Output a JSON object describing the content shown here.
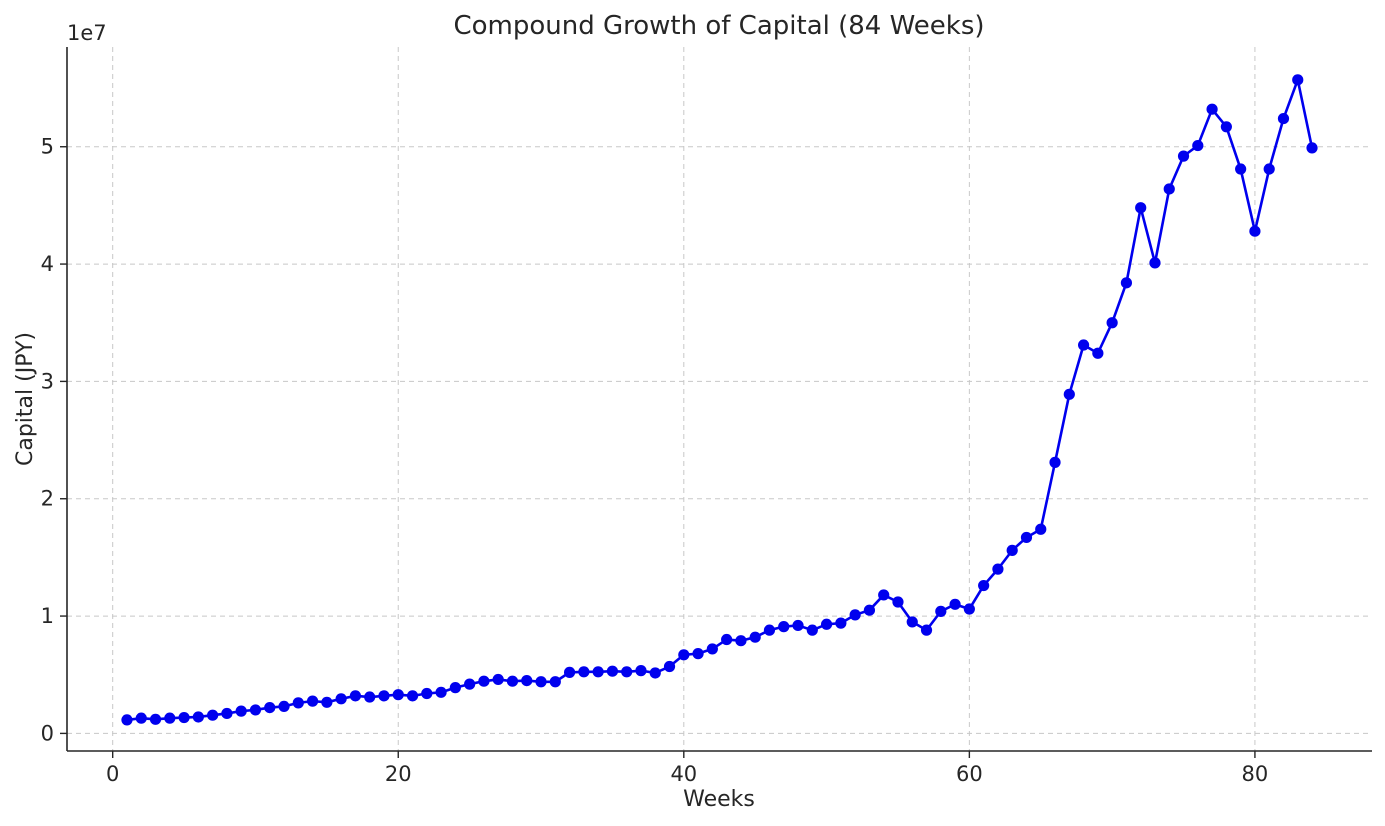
{
  "chart_data": {
    "type": "line",
    "title": "Compound Growth of Capital (84 Weeks)",
    "xlabel": "Weeks",
    "ylabel": "Capital (JPY)",
    "y_offset_label": "1e7",
    "xlim": [
      -3.2,
      88.2
    ],
    "ylim": [
      -1500000,
      58500000
    ],
    "x_ticks": [
      0,
      20,
      40,
      60,
      80
    ],
    "x_tick_labels": [
      "0",
      "20",
      "40",
      "60",
      "80"
    ],
    "y_ticks": [
      0,
      10000000,
      20000000,
      30000000,
      40000000,
      50000000
    ],
    "y_tick_labels": [
      "0",
      "1",
      "2",
      "3",
      "4",
      "5"
    ],
    "grid": true,
    "color": "#0000ee",
    "series": [
      {
        "x": [
          1,
          2,
          3,
          4,
          5,
          6,
          7,
          8,
          9,
          10,
          11,
          12,
          13,
          14,
          15,
          16,
          17,
          18,
          19,
          20,
          21,
          22,
          23,
          24,
          25,
          26,
          27,
          28,
          29,
          30,
          31,
          32,
          33,
          34,
          35,
          36,
          37,
          38,
          39,
          40,
          41,
          42,
          43,
          44,
          45,
          46,
          47,
          48,
          49,
          50,
          51,
          52,
          53,
          54,
          55,
          56,
          57,
          58,
          59,
          60,
          61,
          62,
          63,
          64,
          65,
          66,
          67,
          68,
          69,
          70,
          71,
          72,
          73,
          74,
          75,
          76,
          77,
          78,
          79,
          80,
          81,
          82,
          83,
          84
        ],
        "values": [
          1150000,
          1300000,
          1200000,
          1300000,
          1350000,
          1400000,
          1550000,
          1700000,
          1900000,
          2000000,
          2200000,
          2300000,
          2600000,
          2750000,
          2650000,
          2950000,
          3200000,
          3100000,
          3200000,
          3300000,
          3200000,
          3400000,
          3500000,
          3900000,
          4200000,
          4450000,
          4600000,
          4450000,
          4500000,
          4400000,
          4400000,
          5200000,
          5250000,
          5250000,
          5300000,
          5250000,
          5350000,
          5150000,
          5700000,
          6700000,
          6800000,
          7200000,
          8000000,
          7900000,
          8200000,
          8800000,
          9100000,
          9200000,
          8800000,
          9300000,
          9400000,
          10100000,
          10500000,
          11800000,
          11200000,
          9500000,
          8800000,
          10400000,
          11000000,
          10600000,
          12600000,
          14000000,
          15600000,
          16700000,
          17400000,
          23100000,
          28900000,
          33100000,
          32400000,
          35000000,
          38400000,
          44800000,
          40100000,
          46400000,
          49200000,
          50100000,
          53200000,
          51700000,
          48100000,
          42800000,
          48100000,
          52400000,
          55700000,
          49900000
        ]
      }
    ]
  }
}
